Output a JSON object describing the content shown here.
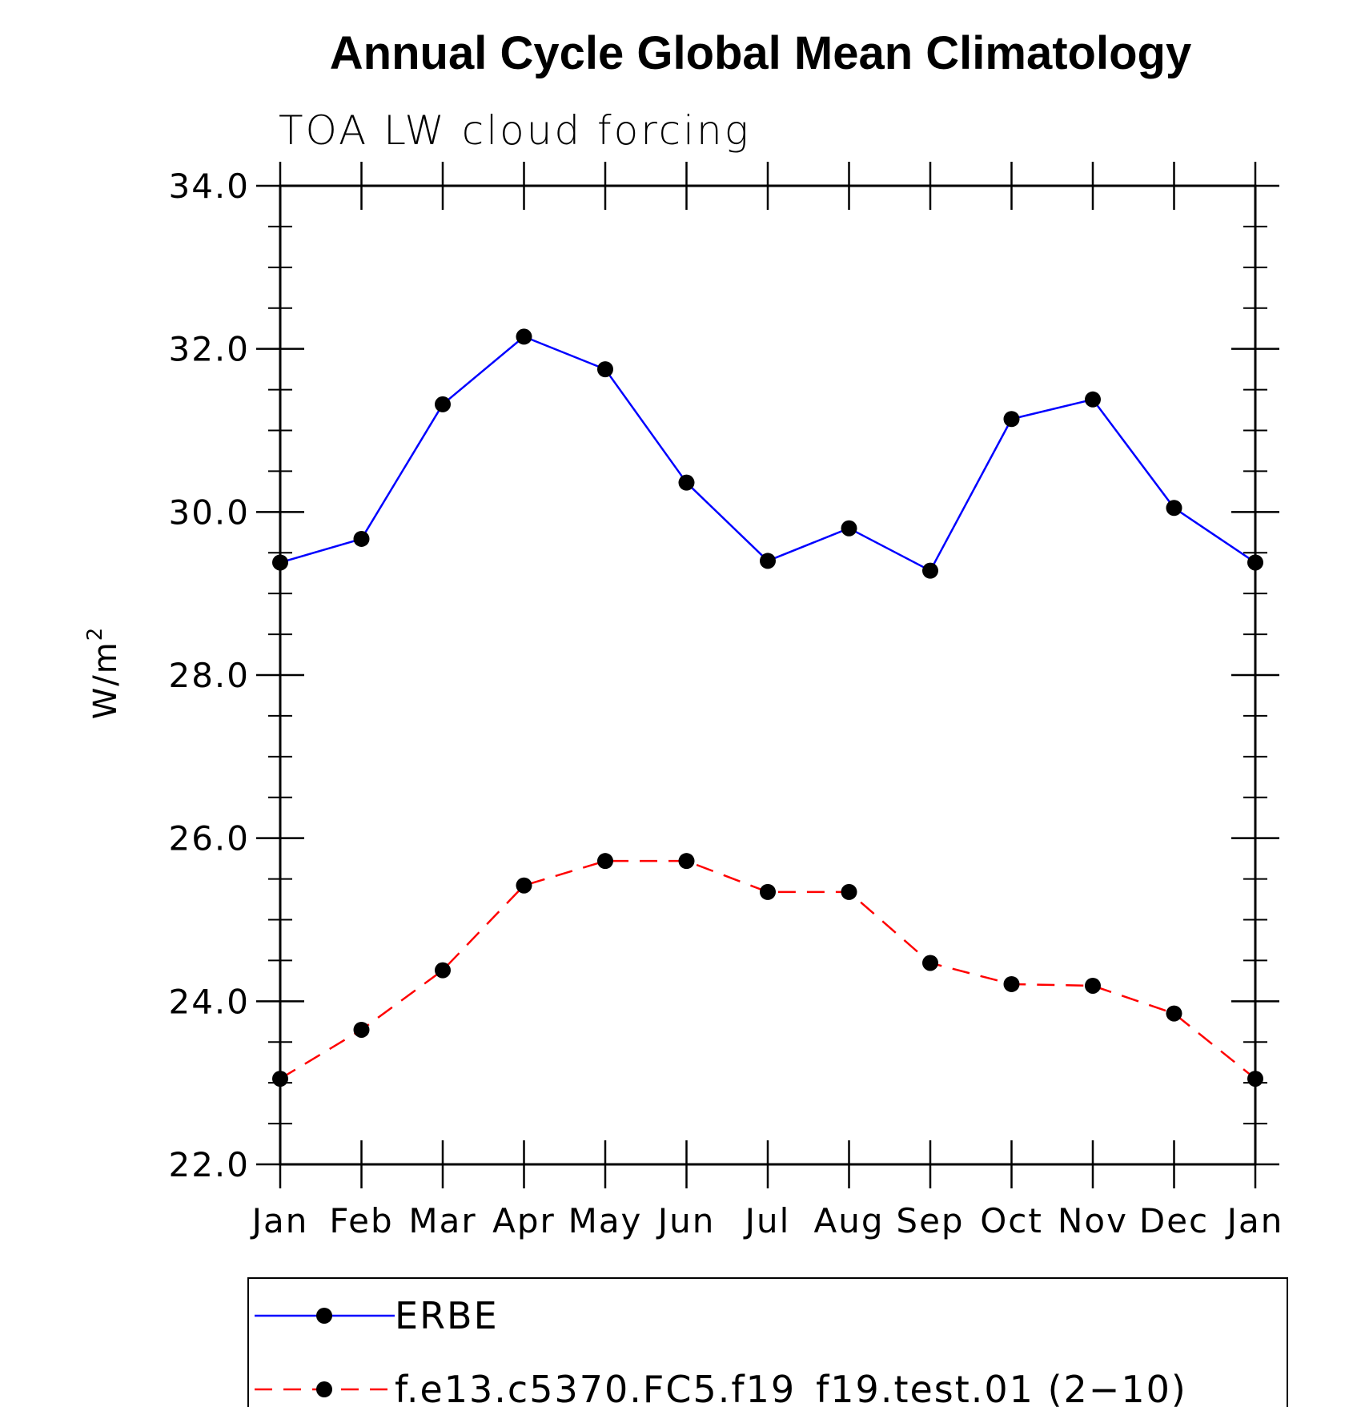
{
  "chart_data": {
    "type": "line",
    "title": "Annual Cycle Global Mean Climatology",
    "subtitle": "TOA LW cloud forcing",
    "xlabel": "",
    "ylabel": "W/m",
    "ylabel_superscript": "2",
    "categories": [
      "Jan",
      "Feb",
      "Mar",
      "Apr",
      "May",
      "Jun",
      "Jul",
      "Aug",
      "Sep",
      "Oct",
      "Nov",
      "Dec",
      "Jan"
    ],
    "ylim": [
      22.0,
      34.0
    ],
    "yticks": [
      22.0,
      24.0,
      26.0,
      28.0,
      30.0,
      32.0,
      34.0
    ],
    "ytick_labels": [
      "22.0",
      "24.0",
      "26.0",
      "28.0",
      "30.0",
      "32.0",
      "34.0"
    ],
    "y_minor_step": 0.5,
    "grid": false,
    "legend_position": "bottom",
    "series": [
      {
        "name": "ERBE",
        "color": "#0000ff",
        "line_style": "solid",
        "marker": "filled-circle",
        "values": [
          29.38,
          29.67,
          31.32,
          32.15,
          31.75,
          30.36,
          29.4,
          29.8,
          29.28,
          31.14,
          31.38,
          30.05,
          29.38
        ]
      },
      {
        "name": "f.e13.c5370.FC5.f19_f19.test.01 (2−10)",
        "color": "#ff0000",
        "line_style": "dashed",
        "marker": "filled-circle",
        "values": [
          23.05,
          23.65,
          24.38,
          25.42,
          25.72,
          25.72,
          25.34,
          25.34,
          24.47,
          24.21,
          24.19,
          23.85,
          23.05
        ]
      }
    ]
  }
}
